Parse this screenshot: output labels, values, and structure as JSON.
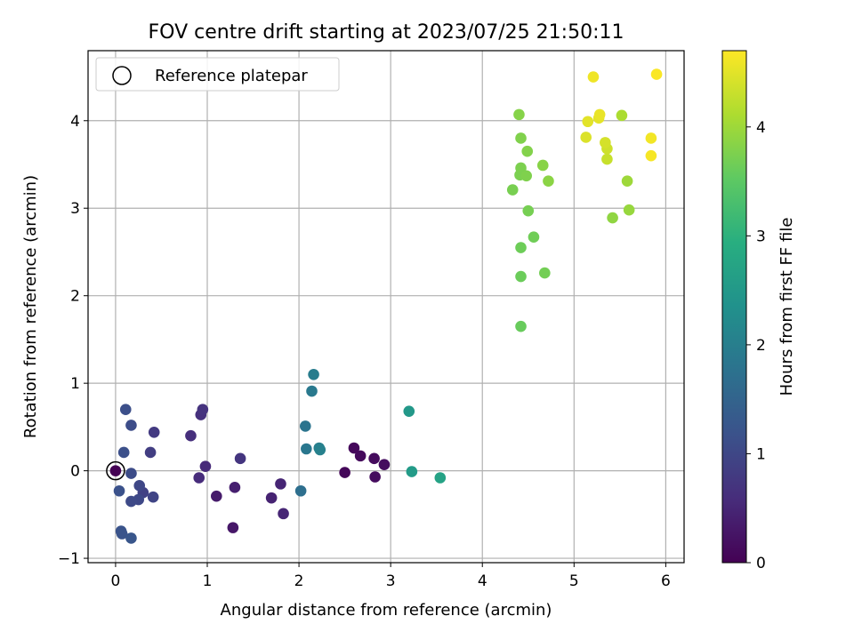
{
  "chart_data": {
    "type": "scatter",
    "title": "FOV centre drift starting at 2023/07/25 21:50:11",
    "xlabel": "Angular distance from reference (arcmin)",
    "ylabel": "Rotation from reference (arcmin)",
    "xlim": [
      -0.3,
      6.2
    ],
    "ylim": [
      -1.05,
      4.8
    ],
    "xticks": [
      0,
      1,
      2,
      3,
      4,
      5,
      6
    ],
    "yticks": [
      -1,
      0,
      1,
      2,
      3,
      4
    ],
    "grid": true,
    "legend": {
      "placement": "top-left",
      "entries": [
        "Reference platepar"
      ]
    },
    "colorbar": {
      "label": "Hours from first FF file",
      "range": [
        0,
        4.7
      ],
      "ticks": [
        0,
        1,
        2,
        3,
        4
      ],
      "colormap": "viridis"
    },
    "reference_point": {
      "x": 0,
      "y": 0
    },
    "points": [
      {
        "x": 0.0,
        "y": 0.0,
        "h": 0.0
      },
      {
        "x": 2.5,
        "y": -0.02,
        "h": 0.08
      },
      {
        "x": 2.6,
        "y": 0.26,
        "h": 0.1
      },
      {
        "x": 2.67,
        "y": 0.17,
        "h": 0.12
      },
      {
        "x": 2.82,
        "y": 0.14,
        "h": 0.14
      },
      {
        "x": 2.83,
        "y": -0.07,
        "h": 0.15
      },
      {
        "x": 2.93,
        "y": 0.07,
        "h": 0.16
      },
      {
        "x": 1.28,
        "y": -0.65,
        "h": 0.3
      },
      {
        "x": 1.1,
        "y": -0.29,
        "h": 0.35
      },
      {
        "x": 1.3,
        "y": -0.19,
        "h": 0.4
      },
      {
        "x": 1.7,
        "y": -0.31,
        "h": 0.45
      },
      {
        "x": 1.8,
        "y": -0.15,
        "h": 0.48
      },
      {
        "x": 1.83,
        "y": -0.49,
        "h": 0.5
      },
      {
        "x": 0.98,
        "y": 0.05,
        "h": 0.55
      },
      {
        "x": 0.91,
        "y": -0.08,
        "h": 0.58
      },
      {
        "x": 0.82,
        "y": 0.4,
        "h": 0.62
      },
      {
        "x": 0.93,
        "y": 0.64,
        "h": 0.65
      },
      {
        "x": 0.95,
        "y": 0.7,
        "h": 0.68
      },
      {
        "x": 1.36,
        "y": 0.14,
        "h": 0.72
      },
      {
        "x": 0.42,
        "y": 0.44,
        "h": 0.8
      },
      {
        "x": 0.38,
        "y": 0.21,
        "h": 0.85
      },
      {
        "x": 0.3,
        "y": -0.25,
        "h": 0.9
      },
      {
        "x": 0.41,
        "y": -0.3,
        "h": 0.95
      },
      {
        "x": 0.26,
        "y": -0.17,
        "h": 1.0
      },
      {
        "x": 0.25,
        "y": -0.33,
        "h": 1.02
      },
      {
        "x": 0.17,
        "y": -0.35,
        "h": 1.05
      },
      {
        "x": 0.17,
        "y": -0.03,
        "h": 1.08
      },
      {
        "x": 0.17,
        "y": 0.52,
        "h": 1.1
      },
      {
        "x": 0.11,
        "y": 0.7,
        "h": 1.12
      },
      {
        "x": 0.09,
        "y": 0.21,
        "h": 1.15
      },
      {
        "x": 0.04,
        "y": -0.23,
        "h": 1.18
      },
      {
        "x": 0.06,
        "y": -0.69,
        "h": 1.2
      },
      {
        "x": 0.07,
        "y": -0.72,
        "h": 1.22
      },
      {
        "x": 0.17,
        "y": -0.77,
        "h": 1.25
      },
      {
        "x": 2.02,
        "y": -0.23,
        "h": 1.7
      },
      {
        "x": 2.07,
        "y": 0.51,
        "h": 1.8
      },
      {
        "x": 2.08,
        "y": 0.25,
        "h": 1.85
      },
      {
        "x": 2.14,
        "y": 0.91,
        "h": 1.9
      },
      {
        "x": 2.16,
        "y": 1.1,
        "h": 1.95
      },
      {
        "x": 2.22,
        "y": 0.26,
        "h": 2.0
      },
      {
        "x": 2.23,
        "y": 0.24,
        "h": 2.05
      },
      {
        "x": 3.2,
        "y": 0.68,
        "h": 2.5
      },
      {
        "x": 3.23,
        "y": -0.01,
        "h": 2.55
      },
      {
        "x": 3.54,
        "y": -0.08,
        "h": 2.7
      },
      {
        "x": 4.42,
        "y": 1.65,
        "h": 3.6
      },
      {
        "x": 4.42,
        "y": 2.22,
        "h": 3.62
      },
      {
        "x": 4.42,
        "y": 2.55,
        "h": 3.64
      },
      {
        "x": 4.56,
        "y": 2.67,
        "h": 3.66
      },
      {
        "x": 4.68,
        "y": 2.26,
        "h": 3.68
      },
      {
        "x": 4.5,
        "y": 2.97,
        "h": 3.7
      },
      {
        "x": 4.33,
        "y": 3.21,
        "h": 3.72
      },
      {
        "x": 4.41,
        "y": 3.38,
        "h": 3.74
      },
      {
        "x": 4.42,
        "y": 3.46,
        "h": 3.75
      },
      {
        "x": 4.48,
        "y": 3.37,
        "h": 3.77
      },
      {
        "x": 4.42,
        "y": 3.8,
        "h": 3.78
      },
      {
        "x": 4.49,
        "y": 3.65,
        "h": 3.8
      },
      {
        "x": 4.4,
        "y": 4.07,
        "h": 3.82
      },
      {
        "x": 4.66,
        "y": 3.49,
        "h": 3.84
      },
      {
        "x": 4.72,
        "y": 3.31,
        "h": 3.86
      },
      {
        "x": 5.42,
        "y": 2.89,
        "h": 3.9
      },
      {
        "x": 5.6,
        "y": 2.98,
        "h": 3.95
      },
      {
        "x": 5.58,
        "y": 3.31,
        "h": 4.0
      },
      {
        "x": 5.52,
        "y": 4.06,
        "h": 4.1
      },
      {
        "x": 5.36,
        "y": 3.56,
        "h": 4.3
      },
      {
        "x": 5.36,
        "y": 3.68,
        "h": 4.35
      },
      {
        "x": 5.34,
        "y": 3.75,
        "h": 4.4
      },
      {
        "x": 5.13,
        "y": 3.81,
        "h": 4.45
      },
      {
        "x": 5.15,
        "y": 3.99,
        "h": 4.5
      },
      {
        "x": 5.27,
        "y": 4.03,
        "h": 4.52
      },
      {
        "x": 5.28,
        "y": 4.07,
        "h": 4.55
      },
      {
        "x": 5.21,
        "y": 4.5,
        "h": 4.6
      },
      {
        "x": 5.84,
        "y": 3.8,
        "h": 4.62
      },
      {
        "x": 5.84,
        "y": 3.6,
        "h": 4.65
      },
      {
        "x": 5.9,
        "y": 4.53,
        "h": 4.68
      }
    ]
  }
}
